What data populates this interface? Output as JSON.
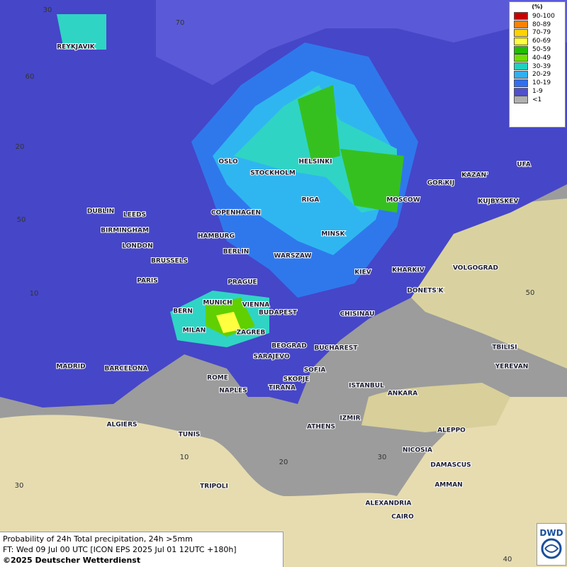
{
  "legend": {
    "title": "(%)",
    "items": [
      {
        "label": "90-100",
        "color": "#c80000"
      },
      {
        "label": "80-89",
        "color": "#ff8000"
      },
      {
        "label": "70-79",
        "color": "#ffd200"
      },
      {
        "label": "60-69",
        "color": "#ffff40"
      },
      {
        "label": "50-59",
        "color": "#20c000"
      },
      {
        "label": "40-49",
        "color": "#70e000"
      },
      {
        "label": "30-39",
        "color": "#20d0c0"
      },
      {
        "label": "20-29",
        "color": "#30b0f0"
      },
      {
        "label": "10-19",
        "color": "#3070f0"
      },
      {
        "label": "1-9",
        "color": "#5050d0"
      },
      {
        "label": "<1",
        "color": "#b0b0b0"
      }
    ]
  },
  "cities": [
    "REYKJAVIK",
    "OSLO",
    "STOCKHOLM",
    "HELSINKI",
    "DUBLIN",
    "LEEDS",
    "COPENHAGEN",
    "RIGA",
    "MOSCOW",
    "GOR'KIJ",
    "KAZAN'",
    "UFA",
    "KUJBYSKEV",
    "BIRMINGHAM",
    "HAMBURG",
    "MINSK",
    "LONDON",
    "BERLIN",
    "WARSZAW",
    "BRUSSELS",
    "KIEV",
    "KHARKIV",
    "VOLGOGRAD",
    "PARIS",
    "PRAGUE",
    "DONETS'K",
    "MUNICH",
    "VIENNA",
    "BERN",
    "BUDAPEST",
    "CHISINAU",
    "MILAN",
    "ZAGREB",
    "TBILISI",
    "BEOGRAD",
    "BUCHAREST",
    "SARAJEVO",
    "MADRID",
    "BARCELONA",
    "YEREVAN",
    "SOFIA",
    "ROME",
    "SKOPJE",
    "ISTANBUL",
    "NAPLES",
    "TIRANA",
    "ANKARA",
    "ALGIERS",
    "IZMIR",
    "ATHENS",
    "ALEPPO",
    "TUNIS",
    "NICOSIA",
    "DAMASCUS",
    "TRIPOLI",
    "AMMAN",
    "ALEXANDRIA",
    "CAIRO"
  ],
  "grid_labels": [
    "30",
    "70",
    "60",
    "20",
    "50",
    "10",
    "50",
    "10",
    "20",
    "30",
    "30",
    "40"
  ],
  "footer": [
    "Probability of 24h Total precipitation, 24h >5mm",
    "FT: Wed 09 Jul 00 UTC [ICON EPS 2025 Jul 01 12UTC +180h]",
    "©2025 Deutscher Wetterdienst"
  ],
  "logo": "DWD"
}
